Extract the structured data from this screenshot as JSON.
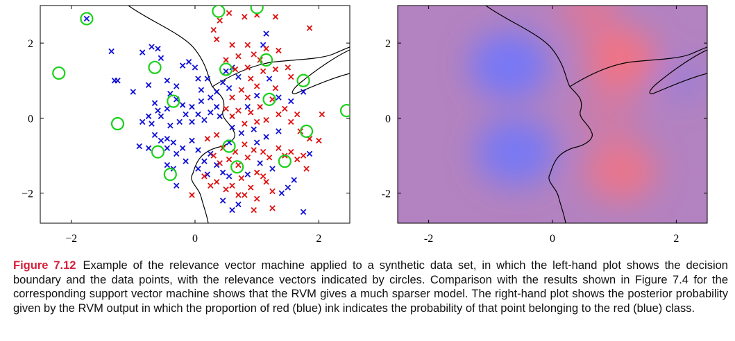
{
  "caption": {
    "label": "Figure 7.12",
    "text": "Example of the relevance vector machine applied to a synthetic data set, in which the left-hand plot shows the decision boundary and the data points, with the relevance vectors indicated by circles. Comparison with the results shown in Figure 7.4 for the corresponding support vector machine shows that the RVM gives a much sparser model. The right-hand plot shows the posterior probability given by the RVM output in which the proportion of red (blue) ink indicates the probability of that point belonging to the red (blue) class."
  },
  "colors": {
    "caption_label": "#d6203a",
    "red_class": "#e01010",
    "blue_class": "#1010d8",
    "relevance_circle": "#19d119",
    "boundary": "#000000"
  },
  "chart_data": [
    {
      "type": "scatter",
      "xlim": [
        -2.5,
        2.5
      ],
      "ylim": [
        -2.8,
        3.0
      ],
      "xticks": [
        "−2",
        "0",
        "2"
      ],
      "yticks": [
        "−2",
        "0",
        "2"
      ],
      "xtick_values": [
        -2,
        0,
        2
      ],
      "ytick_values": [
        -2,
        0,
        2
      ],
      "grid": false,
      "series": [
        {
          "points": [
            [
              -1.75,
              2.65
            ],
            [
              -1.35,
              1.78
            ],
            [
              -1.3,
              1.0
            ],
            [
              -1.25,
              1.0
            ],
            [
              -1.0,
              0.7
            ],
            [
              -0.85,
              1.75
            ],
            [
              -0.75,
              0.88
            ],
            [
              -0.7,
              1.9
            ],
            [
              -0.6,
              1.85
            ],
            [
              -0.55,
              1.6
            ],
            [
              -0.45,
              1.0
            ],
            [
              -0.4,
              0.65
            ],
            [
              -0.3,
              0.85
            ],
            [
              -0.2,
              1.4
            ],
            [
              -0.1,
              1.5
            ],
            [
              0.0,
              1.35
            ],
            [
              0.05,
              1.05
            ],
            [
              0.1,
              0.75
            ],
            [
              0.2,
              1.05
            ],
            [
              -0.65,
              0.4
            ],
            [
              -0.6,
              0.2
            ],
            [
              -0.45,
              0.25
            ],
            [
              -0.3,
              0.5
            ],
            [
              -0.2,
              0.35
            ],
            [
              -0.05,
              0.3
            ],
            [
              0.1,
              0.45
            ],
            [
              0.25,
              0.55
            ],
            [
              0.35,
              0.7
            ],
            [
              0.45,
              0.95
            ],
            [
              0.5,
              1.25
            ],
            [
              0.55,
              0.8
            ],
            [
              0.6,
              1.35
            ],
            [
              -0.85,
              -0.1
            ],
            [
              -0.7,
              -0.15
            ],
            [
              -0.75,
              0.05
            ],
            [
              -0.55,
              0.05
            ],
            [
              -0.4,
              -0.2
            ],
            [
              -0.25,
              -0.1
            ],
            [
              -0.15,
              0.1
            ],
            [
              -0.05,
              -0.1
            ],
            [
              0.05,
              0.1
            ],
            [
              0.15,
              -0.05
            ],
            [
              0.25,
              0.15
            ],
            [
              0.35,
              0.3
            ],
            [
              0.4,
              0.05
            ],
            [
              -0.9,
              -0.75
            ],
            [
              -0.75,
              -0.8
            ],
            [
              -0.65,
              -0.45
            ],
            [
              -0.55,
              -0.6
            ],
            [
              -0.45,
              -0.8
            ],
            [
              -0.35,
              -0.65
            ],
            [
              -0.3,
              -0.95
            ],
            [
              -0.2,
              -0.8
            ],
            [
              -0.15,
              -1.15
            ],
            [
              -0.05,
              -0.6
            ],
            [
              0.05,
              -0.85
            ],
            [
              0.15,
              -1.15
            ],
            [
              0.25,
              -0.95
            ],
            [
              0.35,
              -1.25
            ],
            [
              0.45,
              -1.45
            ],
            [
              0.55,
              -1.55
            ],
            [
              -0.45,
              -1.25
            ],
            [
              -0.35,
              -1.35
            ],
            [
              -0.3,
              -1.8
            ],
            [
              0.05,
              -1.35
            ],
            [
              0.2,
              -1.5
            ],
            [
              0.45,
              -2.2
            ],
            [
              0.6,
              -2.45
            ],
            [
              0.7,
              -2.3
            ],
            [
              0.85,
              -1.5
            ],
            [
              1.05,
              -1.2
            ],
            [
              1.25,
              -1.35
            ],
            [
              1.4,
              -2.0
            ],
            [
              1.5,
              -1.85
            ],
            [
              1.6,
              -1.65
            ],
            [
              1.75,
              -2.5
            ],
            [
              1.85,
              -0.95
            ],
            [
              1.75,
              0.7
            ],
            [
              1.55,
              0.45
            ],
            [
              1.35,
              0.55
            ],
            [
              1.15,
              2.25
            ],
            [
              1.1,
              1.95
            ],
            [
              1.2,
              1.05
            ],
            [
              1.0,
              0.6
            ],
            [
              0.85,
              0.3
            ],
            [
              0.75,
              -0.4
            ],
            [
              0.6,
              -0.25
            ],
            [
              0.55,
              -0.65
            ],
            [
              1.0,
              -0.65
            ],
            [
              1.15,
              -0.5
            ],
            [
              1.35,
              -0.35
            ],
            [
              0.95,
              -0.3
            ],
            [
              0.7,
              1.1
            ],
            [
              -0.45,
              -0.55
            ]
          ],
          "kind": "blue-cross"
        },
        {
          "points": [
            [
              0.3,
              2.35
            ],
            [
              0.4,
              2.6
            ],
            [
              0.55,
              2.8
            ],
            [
              0.8,
              2.7
            ],
            [
              1.0,
              2.75
            ],
            [
              1.3,
              2.7
            ],
            [
              1.85,
              2.4
            ],
            [
              0.35,
              2.1
            ],
            [
              0.6,
              1.95
            ],
            [
              0.85,
              1.95
            ],
            [
              0.95,
              1.7
            ],
            [
              1.05,
              1.55
            ],
            [
              1.15,
              1.85
            ],
            [
              1.35,
              1.8
            ],
            [
              1.5,
              1.35
            ],
            [
              1.55,
              1.1
            ],
            [
              1.3,
              1.3
            ],
            [
              0.7,
              1.65
            ],
            [
              0.5,
              1.55
            ],
            [
              0.65,
              1.3
            ],
            [
              0.85,
              1.35
            ],
            [
              1.1,
              1.25
            ],
            [
              0.9,
              1.05
            ],
            [
              0.75,
              0.75
            ],
            [
              0.6,
              0.55
            ],
            [
              0.85,
              0.55
            ],
            [
              1.0,
              0.85
            ],
            [
              1.3,
              0.8
            ],
            [
              1.25,
              0.5
            ],
            [
              1.45,
              0.25
            ],
            [
              1.55,
              -0.1
            ],
            [
              1.65,
              0.1
            ],
            [
              1.7,
              -0.35
            ],
            [
              1.85,
              -0.55
            ],
            [
              2.05,
              0.1
            ],
            [
              2.0,
              -0.6
            ],
            [
              0.5,
              0.25
            ],
            [
              0.7,
              0.2
            ],
            [
              0.9,
              0.15
            ],
            [
              1.05,
              0.3
            ],
            [
              1.15,
              -0.05
            ],
            [
              1.35,
              0.1
            ],
            [
              1.0,
              -0.1
            ],
            [
              0.8,
              -0.15
            ],
            [
              0.6,
              0.05
            ],
            [
              0.2,
              -0.55
            ],
            [
              0.35,
              -0.45
            ],
            [
              0.45,
              -0.8
            ],
            [
              0.65,
              -0.9
            ],
            [
              0.8,
              -0.7
            ],
            [
              0.95,
              -0.85
            ],
            [
              1.1,
              -0.9
            ],
            [
              1.2,
              -1.05
            ],
            [
              1.35,
              -0.8
            ],
            [
              1.45,
              -1.0
            ],
            [
              1.55,
              -0.9
            ],
            [
              1.65,
              -1.1
            ],
            [
              1.8,
              -1.35
            ],
            [
              1.75,
              -1.0
            ],
            [
              0.3,
              -1.0
            ],
            [
              0.4,
              -1.2
            ],
            [
              0.55,
              -1.1
            ],
            [
              0.7,
              -1.25
            ],
            [
              0.85,
              -1.05
            ],
            [
              1.0,
              -1.45
            ],
            [
              1.15,
              -1.7
            ],
            [
              0.35,
              -1.7
            ],
            [
              0.6,
              -1.8
            ],
            [
              0.75,
              -1.6
            ],
            [
              0.9,
              -1.85
            ],
            [
              1.1,
              -1.55
            ],
            [
              1.25,
              -1.95
            ],
            [
              0.5,
              -1.9
            ],
            [
              0.8,
              -2.05
            ],
            [
              1.0,
              -2.15
            ],
            [
              -0.05,
              -2.05
            ],
            [
              0.25,
              -1.8
            ],
            [
              0.15,
              -1.55
            ],
            [
              0.95,
              -2.45
            ],
            [
              1.25,
              -2.4
            ],
            [
              0.7,
              -2.05
            ]
          ],
          "kind": "red-cross"
        },
        {
          "points": [
            [
              -2.2,
              1.2
            ],
            [
              -1.75,
              2.65
            ],
            [
              -1.25,
              -0.15
            ],
            [
              -0.65,
              1.35
            ],
            [
              -0.6,
              -0.9
            ],
            [
              -0.35,
              0.45
            ],
            [
              -0.4,
              -1.5
            ],
            [
              0.38,
              2.85
            ],
            [
              0.5,
              1.3
            ],
            [
              0.55,
              -0.75
            ],
            [
              0.68,
              -1.3
            ],
            [
              1.0,
              2.95
            ],
            [
              1.15,
              1.55
            ],
            [
              1.2,
              0.5
            ],
            [
              1.45,
              -1.15
            ],
            [
              1.75,
              1.0
            ],
            [
              1.8,
              -0.35
            ],
            [
              2.45,
              0.2
            ]
          ],
          "kind": "relevance-circle"
        }
      ]
    },
    {
      "type": "heatmap",
      "xlim": [
        -2.5,
        2.5
      ],
      "ylim": [
        -2.8,
        3.0
      ],
      "xticks": [
        "-2",
        "0",
        "2"
      ],
      "yticks": [
        "-2",
        "0",
        "2"
      ],
      "xtick_values": [
        -2,
        0,
        2
      ],
      "ytick_values": [
        -2,
        0,
        2
      ],
      "grid": false,
      "blobs": [
        {
          "x": -0.7,
          "y": 1.4,
          "sigma": 0.55,
          "class": "blue",
          "strength": 0.85
        },
        {
          "x": -0.6,
          "y": -0.9,
          "sigma": 0.55,
          "class": "blue",
          "strength": 0.8
        },
        {
          "x": 1.1,
          "y": 1.6,
          "sigma": 0.5,
          "class": "red",
          "strength": 0.8
        },
        {
          "x": 0.6,
          "y": 2.9,
          "sigma": 0.4,
          "class": "red",
          "strength": 0.55
        },
        {
          "x": 1.1,
          "y": -1.4,
          "sigma": 0.5,
          "class": "red",
          "strength": 0.7
        },
        {
          "x": 0.9,
          "y": 0.2,
          "sigma": 0.45,
          "class": "red",
          "strength": 0.35
        },
        {
          "x": 2.1,
          "y": 1.0,
          "sigma": 0.35,
          "class": "blue",
          "strength": 0.3
        }
      ]
    }
  ]
}
